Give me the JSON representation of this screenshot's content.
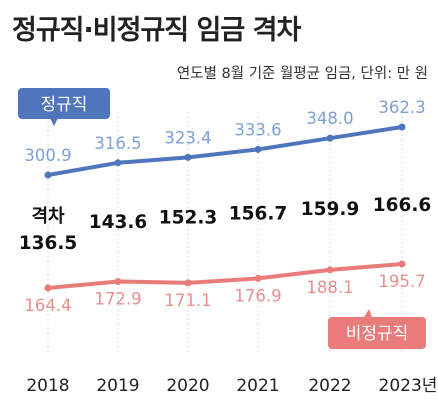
{
  "title": "정규직·비정규직 임금 격차",
  "subtitle": "연도별 8월 기준 월평균 임금, 단위: 만 원",
  "colors": {
    "regular": "#4f76bd",
    "regular_label": "#7da0d6",
    "irregular": "#e97b7b",
    "irregular_label": "#e8908b",
    "gap_text": "#111111",
    "gridline": "#cfcfcf"
  },
  "chart_data": {
    "type": "line",
    "x": [
      "2018",
      "2019",
      "2020",
      "2021",
      "2022",
      "2023년"
    ],
    "series": [
      {
        "name": "정규직",
        "values": [
          300.9,
          316.5,
          323.4,
          333.6,
          348.0,
          362.3
        ],
        "labels": [
          "300.9",
          "316.5",
          "323.4",
          "333.6",
          "348.0",
          "362.3"
        ]
      },
      {
        "name": "비정규직",
        "values": [
          164.4,
          172.9,
          171.1,
          176.9,
          188.1,
          195.7
        ],
        "labels": [
          "164.4",
          "172.9",
          "171.1",
          "176.9",
          "188.1",
          "195.7"
        ]
      }
    ],
    "gap": {
      "label": "격차",
      "values": [
        136.5,
        143.6,
        152.3,
        156.7,
        159.9,
        166.6
      ],
      "labels": [
        "136.5",
        "143.6",
        "152.3",
        "156.7",
        "159.9",
        "166.6"
      ]
    },
    "grid": "vertical-dotted",
    "legend": "inline-callouts"
  }
}
